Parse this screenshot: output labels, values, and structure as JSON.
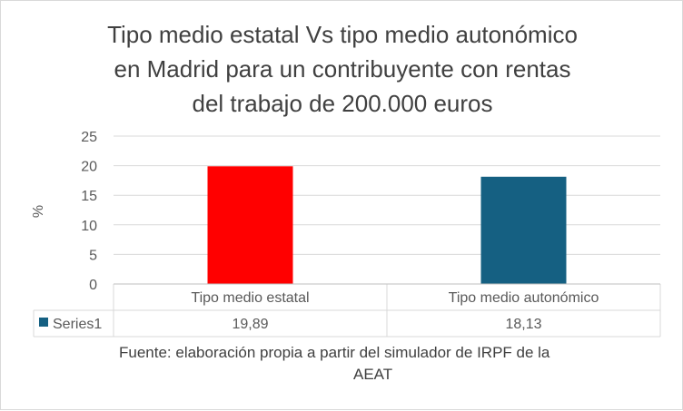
{
  "chart_data": {
    "type": "bar",
    "title_lines": [
      "Tipo medio estatal Vs tipo medio autonómico",
      "en Madrid para un contribuyente con rentas",
      "del trabajo de 200.000 euros"
    ],
    "ylabel": "%",
    "ylim": [
      0,
      25
    ],
    "yticks": [
      0,
      5,
      10,
      15,
      20,
      25
    ],
    "grid": true,
    "categories": [
      "Tipo medio estatal",
      "Tipo medio autonómico"
    ],
    "bar_colors": [
      "#ff0000",
      "#156082"
    ],
    "series": [
      {
        "name": "Series1",
        "color": "#156082",
        "values": [
          19.89,
          18.13
        ],
        "labels": [
          "19,89",
          "18,13"
        ]
      }
    ],
    "legend_placement": "data-table"
  },
  "source_lines": [
    "Fuente: elaboración propia a partir del simulador de IRPF de la",
    "AEAT"
  ]
}
